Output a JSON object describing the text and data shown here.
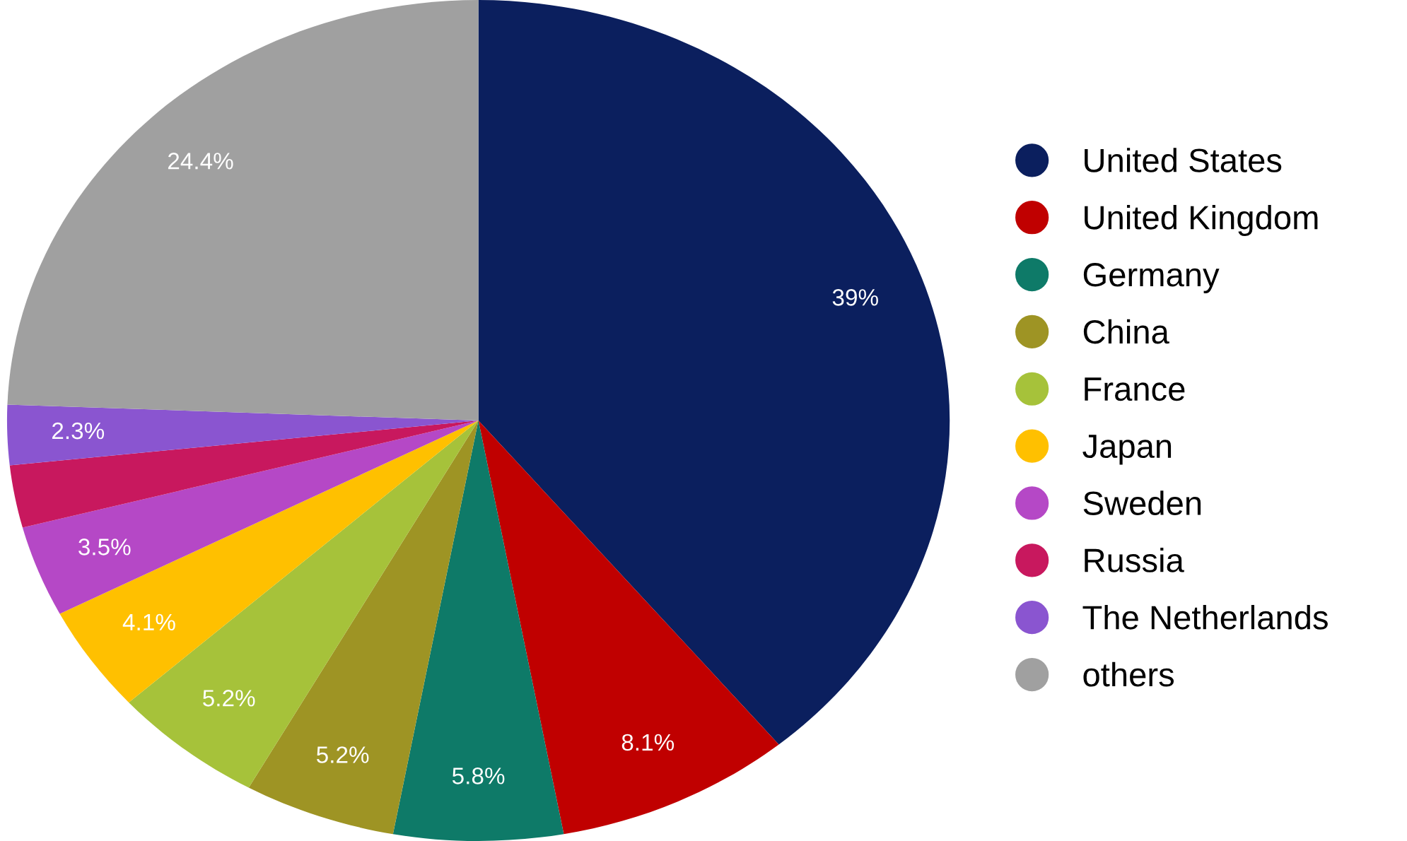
{
  "chart_data": {
    "type": "pie",
    "categories": [
      "United States",
      "United Kingdom",
      "Germany",
      "China",
      "France",
      "Japan",
      "Sweden",
      "Russia",
      "The Netherlands",
      "others"
    ],
    "values": [
      39,
      8.1,
      5.8,
      5.2,
      5.2,
      4.1,
      3.5,
      2.4,
      2.3,
      24.4
    ],
    "value_labels": [
      "39%",
      "8.1%",
      "5.8%",
      "5.2%",
      "5.2%",
      "4.1%",
      "3.5%",
      null,
      "2.3%",
      "24.4%"
    ],
    "colors": [
      "#0b1f5e",
      "#c00000",
      "#0e7a68",
      "#9e9424",
      "#a6c23a",
      "#ffc000",
      "#b548c6",
      "#c8185e",
      "#8a55d0",
      "#a0a0a0"
    ],
    "legend": "right"
  }
}
